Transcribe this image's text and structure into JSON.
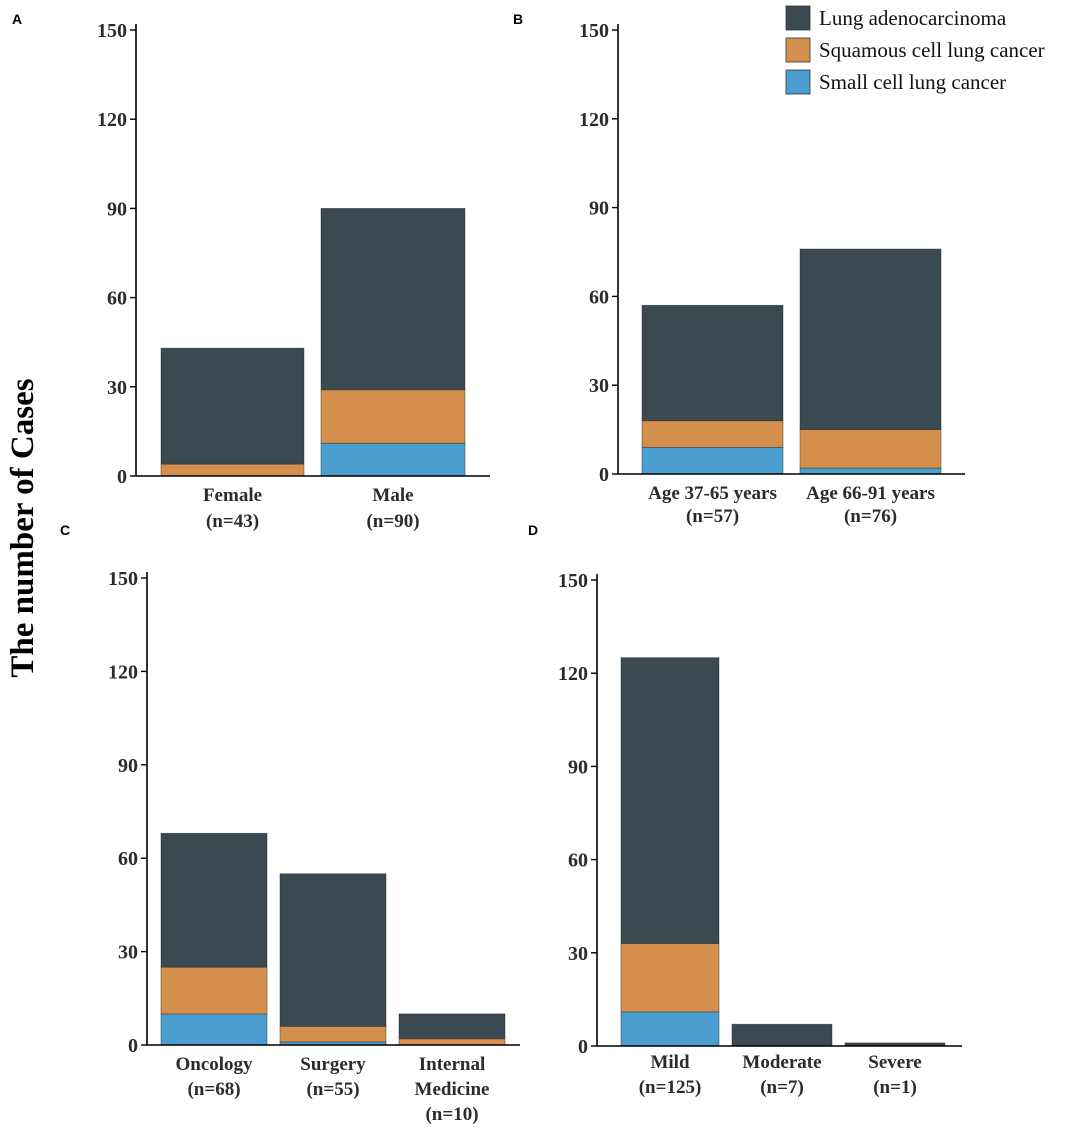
{
  "y_title": "The number of Cases",
  "colors": {
    "adeno": "#3b4a51",
    "squamous": "#d48f4d",
    "small": "#4a9fd0"
  },
  "legend": [
    {
      "key": "adeno",
      "label": "Lung adenocarcinoma"
    },
    {
      "key": "squamous",
      "label": "Squamous cell lung cancer"
    },
    {
      "key": "small",
      "label": "Small cell lung cancer"
    }
  ],
  "chart_data": [
    {
      "panel": "A",
      "type": "bar",
      "stacked": true,
      "ylim": [
        0,
        150
      ],
      "yticks": [
        "0",
        "30",
        "60",
        "90",
        "120",
        "150"
      ],
      "categories": [
        [
          "Female",
          "(n=43)"
        ],
        [
          "Male",
          "(n=90)"
        ]
      ],
      "series": [
        {
          "name": "Small cell lung cancer",
          "key": "small",
          "values": [
            0,
            11
          ]
        },
        {
          "name": "Squamous cell lung cancer",
          "key": "squamous",
          "values": [
            4,
            18
          ]
        },
        {
          "name": "Lung adenocarcinoma",
          "key": "adeno",
          "values": [
            39,
            61
          ]
        }
      ]
    },
    {
      "panel": "B",
      "type": "bar",
      "stacked": true,
      "ylim": [
        0,
        150
      ],
      "yticks": [
        "0",
        "30",
        "60",
        "90",
        "120",
        "150"
      ],
      "categories": [
        [
          "Age 37-65 years",
          "(n=57)"
        ],
        [
          "Age 66-91 years",
          "(n=76)"
        ]
      ],
      "series": [
        {
          "name": "Small cell lung cancer",
          "key": "small",
          "values": [
            9,
            2
          ]
        },
        {
          "name": "Squamous cell lung cancer",
          "key": "squamous",
          "values": [
            9,
            13
          ]
        },
        {
          "name": "Lung adenocarcinoma",
          "key": "adeno",
          "values": [
            39,
            61
          ]
        }
      ]
    },
    {
      "panel": "C",
      "type": "bar",
      "stacked": true,
      "ylim": [
        0,
        150
      ],
      "yticks": [
        "0",
        "30",
        "60",
        "90",
        "120",
        "150"
      ],
      "categories": [
        [
          "Oncology",
          "(n=68)"
        ],
        [
          "Surgery",
          "(n=55)"
        ],
        [
          "Internal",
          "Medicine",
          "(n=10)"
        ]
      ],
      "series": [
        {
          "name": "Small cell lung cancer",
          "key": "small",
          "values": [
            10,
            1,
            0
          ]
        },
        {
          "name": "Squamous cell lung cancer",
          "key": "squamous",
          "values": [
            15,
            5,
            2
          ]
        },
        {
          "name": "Lung adenocarcinoma",
          "key": "adeno",
          "values": [
            43,
            49,
            8
          ]
        }
      ]
    },
    {
      "panel": "D",
      "type": "bar",
      "stacked": true,
      "ylim": [
        0,
        150
      ],
      "yticks": [
        "0",
        "30",
        "60",
        "90",
        "120",
        "150"
      ],
      "categories": [
        [
          "Mild",
          "(n=125)"
        ],
        [
          "Moderate",
          "(n=7)"
        ],
        [
          "Severe",
          "(n=1)"
        ]
      ],
      "series": [
        {
          "name": "Small cell lung cancer",
          "key": "small",
          "values": [
            11,
            0,
            0
          ]
        },
        {
          "name": "Squamous cell lung cancer",
          "key": "squamous",
          "values": [
            22,
            0,
            0
          ]
        },
        {
          "name": "Lung adenocarcinoma",
          "key": "adeno",
          "values": [
            92,
            7,
            1
          ]
        }
      ]
    }
  ]
}
